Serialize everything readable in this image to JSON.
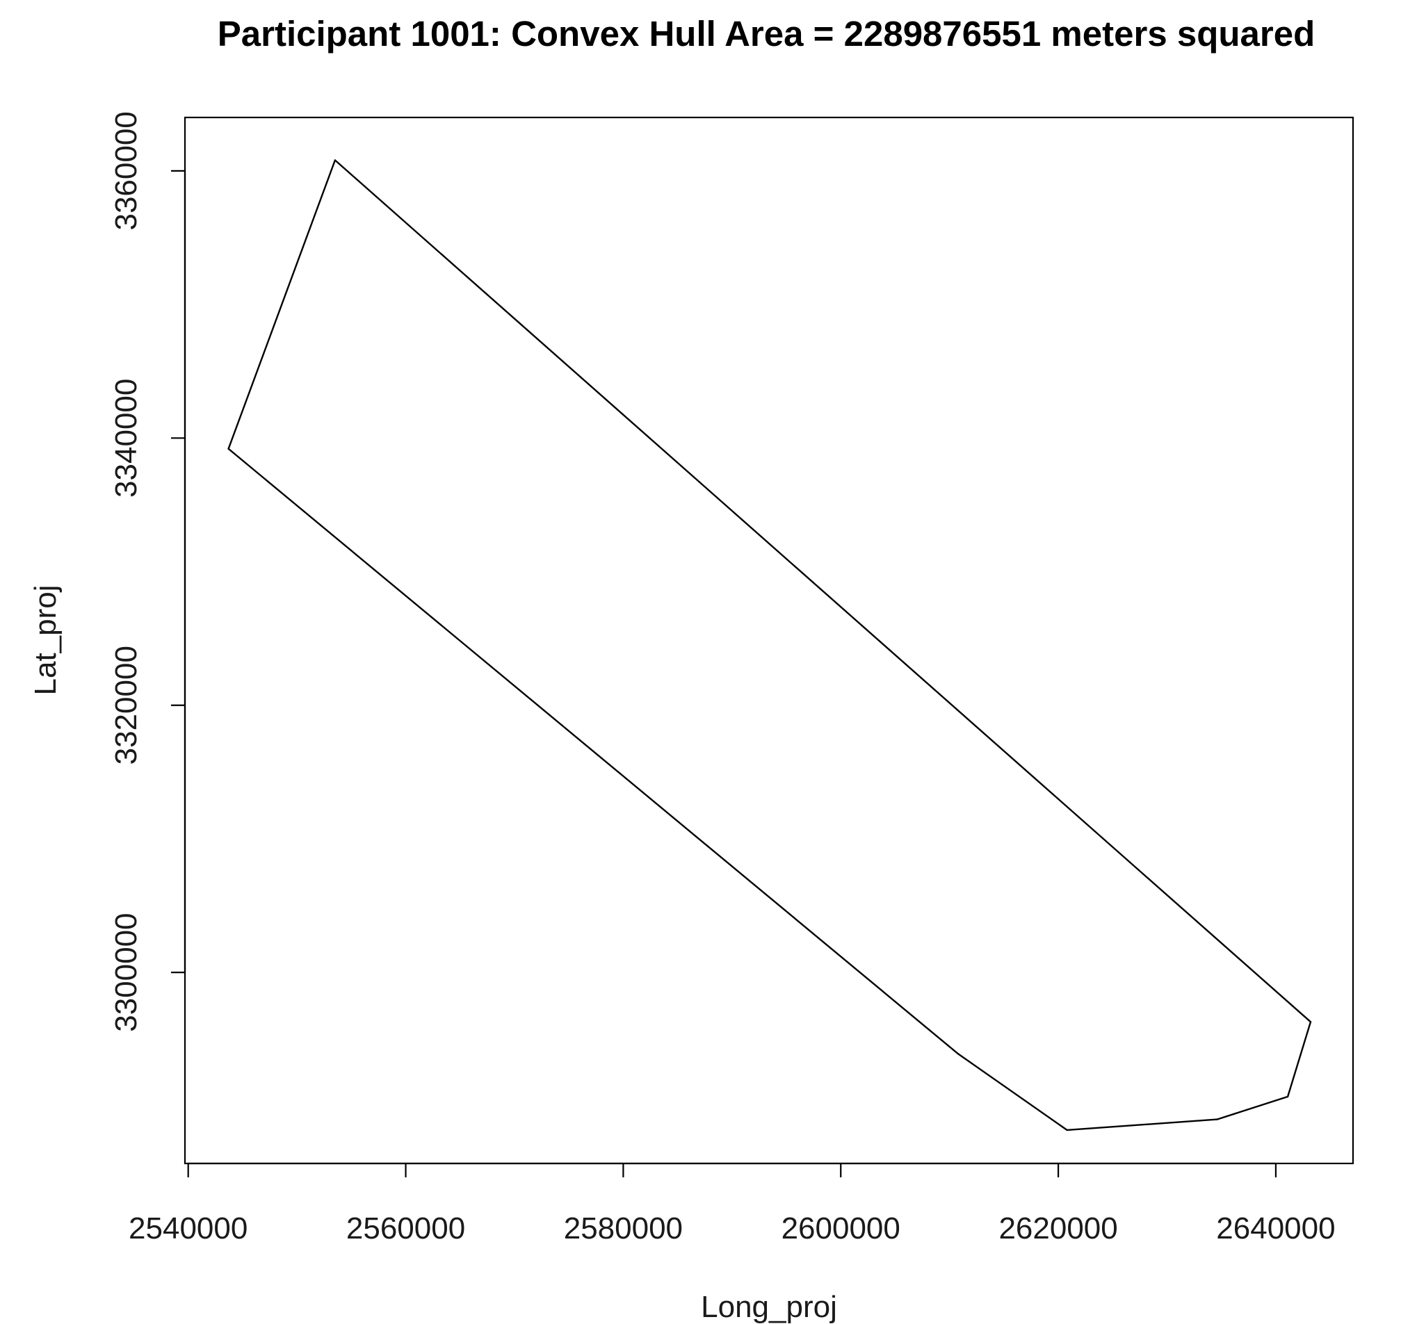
{
  "chart_data": {
    "type": "line",
    "title": "Participant 1001: Convex Hull Area = 2289876551 meters squared",
    "xlabel": "Long_proj",
    "ylabel": "Lat_proj",
    "xlim": [
      2539700,
      2647100
    ],
    "ylim": [
      3285700,
      3364000
    ],
    "x_ticks": [
      2540000,
      2560000,
      2580000,
      2600000,
      2620000,
      2640000
    ],
    "x_tick_labels": [
      "2540000",
      "2560000",
      "2580000",
      "2600000",
      "2620000",
      "2640000"
    ],
    "y_ticks": [
      3300000,
      3320000,
      3340000,
      3360000
    ],
    "y_tick_labels": [
      "3300000",
      "3320000",
      "3340000",
      "3360000"
    ],
    "grid": false,
    "series": [
      {
        "x": [
          2553500,
          2643200,
          2641100,
          2634600,
          2620800,
          2610800,
          2543700,
          2553500
        ],
        "y": [
          3360800,
          3296300,
          3290700,
          3289000,
          3288200,
          3293900,
          3339200,
          3360800
        ]
      }
    ]
  },
  "colors": {
    "background": "#ffffff",
    "line": "#000000",
    "text": "#000000"
  }
}
